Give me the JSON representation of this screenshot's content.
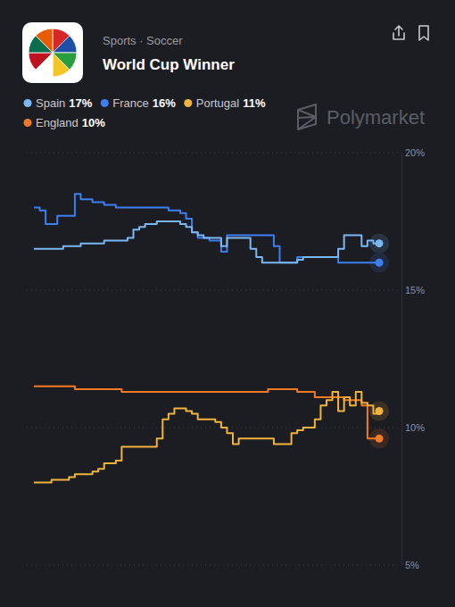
{
  "chart_data": {
    "type": "line",
    "subtitle": "Sports · Soccer",
    "title": "World Cup Winner",
    "source": "Polymarket",
    "ylim": [
      5,
      20
    ],
    "yticks": [
      {
        "value": 5,
        "label": "5%"
      },
      {
        "value": 10,
        "label": "10%"
      },
      {
        "value": 15,
        "label": "15%"
      },
      {
        "value": 20,
        "label": "20%"
      }
    ],
    "grid": true,
    "legend": "top-left",
    "tick_labels": "y",
    "series": [
      {
        "name": "Spain",
        "color": "#7ab8f5",
        "chance": {
          "value": 17,
          "label": "17%"
        },
        "values": [
          16.5,
          16.5,
          16.5,
          16.5,
          16.5,
          16.6,
          16.6,
          16.6,
          16.7,
          16.7,
          16.7,
          16.7,
          16.8,
          16.8,
          16.8,
          16.8,
          16.9,
          17.2,
          17.3,
          17.4,
          17.4,
          17.5,
          17.5,
          17.5,
          17.5,
          17.4,
          17.3,
          17.1,
          17.0,
          16.9,
          16.9,
          16.9,
          16.6,
          16.9,
          16.9,
          16.9,
          16.9,
          16.5,
          16.2,
          16.0,
          16.0,
          16.0,
          16.0,
          16.0,
          16.0,
          16.1,
          16.2,
          16.2,
          16.2,
          16.2,
          16.2,
          16.2,
          16.5,
          17.0,
          17.0,
          17.0,
          16.6,
          16.8,
          16.7,
          16.7
        ]
      },
      {
        "name": "France",
        "color": "#3d7ff0",
        "chance": {
          "value": 16,
          "label": "16%"
        },
        "values": [
          18.0,
          17.9,
          17.4,
          17.4,
          17.7,
          17.7,
          17.7,
          18.5,
          18.3,
          18.3,
          18.2,
          18.2,
          18.1,
          18.1,
          18.0,
          18.0,
          18.0,
          18.0,
          18.0,
          18.0,
          18.0,
          18.0,
          18.0,
          17.9,
          17.9,
          17.8,
          17.6,
          17.1,
          16.9,
          16.9,
          16.8,
          16.8,
          16.4,
          17.0,
          17.0,
          17.0,
          17.0,
          17.0,
          17.0,
          17.0,
          17.0,
          16.6,
          16.0,
          16.0,
          16.0,
          16.2,
          16.2,
          16.2,
          16.2,
          16.2,
          16.2,
          16.2,
          16.0,
          16.0,
          16.0,
          16.0,
          16.0,
          16.0,
          16.0,
          16.0
        ]
      },
      {
        "name": "Portugal",
        "color": "#f1b33c",
        "chance": {
          "value": 11,
          "label": "11%"
        },
        "values": [
          8.0,
          8.0,
          8.0,
          8.1,
          8.1,
          8.1,
          8.2,
          8.3,
          8.3,
          8.3,
          8.4,
          8.5,
          8.7,
          8.7,
          8.8,
          9.3,
          9.3,
          9.3,
          9.3,
          9.3,
          9.3,
          9.6,
          10.3,
          10.5,
          10.7,
          10.7,
          10.6,
          10.5,
          10.3,
          10.3,
          10.3,
          10.2,
          10.0,
          9.8,
          9.4,
          9.6,
          9.6,
          9.6,
          9.6,
          9.6,
          9.6,
          9.4,
          9.4,
          9.4,
          9.8,
          9.9,
          10.0,
          10.0,
          10.3,
          10.8,
          11.0,
          11.3,
          10.6,
          11.1,
          10.8,
          11.3,
          10.9,
          10.8,
          10.5,
          10.6
        ]
      },
      {
        "name": "England",
        "color": "#f27a24",
        "chance": {
          "value": 10,
          "label": "10%"
        },
        "values": [
          11.5,
          11.5,
          11.5,
          11.5,
          11.5,
          11.5,
          11.5,
          11.4,
          11.4,
          11.4,
          11.4,
          11.4,
          11.4,
          11.4,
          11.4,
          11.3,
          11.3,
          11.3,
          11.3,
          11.3,
          11.3,
          11.3,
          11.3,
          11.3,
          11.3,
          11.3,
          11.3,
          11.3,
          11.3,
          11.3,
          11.3,
          11.3,
          11.3,
          11.3,
          11.3,
          11.3,
          11.3,
          11.3,
          11.3,
          11.3,
          11.4,
          11.4,
          11.4,
          11.4,
          11.4,
          11.3,
          11.3,
          11.3,
          11.1,
          11.1,
          11.1,
          11.1,
          11.1,
          11.0,
          11.0,
          11.0,
          10.8,
          9.6,
          9.6,
          9.6
        ]
      }
    ]
  }
}
